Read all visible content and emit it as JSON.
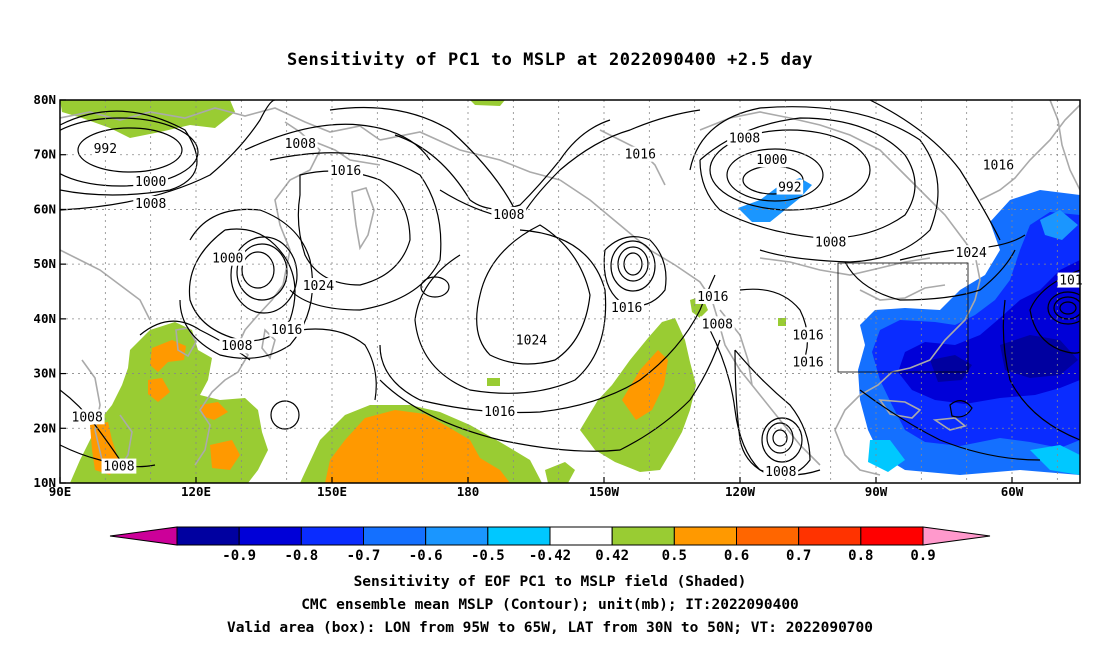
{
  "title": "Sensitivity of PC1 to MSLP at 2022090400 +2.5 day",
  "map": {
    "lat_labels": [
      "80N",
      "70N",
      "60N",
      "50N",
      "40N",
      "30N",
      "20N",
      "10N"
    ],
    "lon_labels": [
      "90E",
      "120E",
      "150E",
      "180",
      "150W",
      "120W",
      "90W",
      "60W"
    ],
    "lon_range_deg": [
      90,
      315
    ],
    "lat_range_deg": [
      10,
      80
    ],
    "grid": true,
    "valid_box": {
      "lon_west": -95,
      "lon_east": -65,
      "lat_south": 30,
      "lat_north": 50
    },
    "contour_labels": [
      {
        "text": "992",
        "lon": 100,
        "lat": 71
      },
      {
        "text": "1000",
        "lon": 110,
        "lat": 65
      },
      {
        "text": "1008",
        "lon": 110,
        "lat": 61
      },
      {
        "text": "1008",
        "lon": 143,
        "lat": 72
      },
      {
        "text": "1016",
        "lon": 153,
        "lat": 67
      },
      {
        "text": "1000",
        "lon": 127,
        "lat": 51
      },
      {
        "text": "1024",
        "lon": 147,
        "lat": 46
      },
      {
        "text": "1016",
        "lon": 140,
        "lat": 38
      },
      {
        "text": "1008",
        "lon": 129,
        "lat": 35
      },
      {
        "text": "1008",
        "lon": 189,
        "lat": 59
      },
      {
        "text": "1016",
        "lon": 218,
        "lat": 70
      },
      {
        "text": "1008",
        "lon": 241,
        "lat": 73
      },
      {
        "text": "1000",
        "lon": 247,
        "lat": 69
      },
      {
        "text": "992",
        "lon": 251,
        "lat": 64
      },
      {
        "text": "1008",
        "lon": 260,
        "lat": 54
      },
      {
        "text": "1016",
        "lon": 297,
        "lat": 68
      },
      {
        "text": "1024",
        "lon": 291,
        "lat": 52
      },
      {
        "text": "101",
        "lon": 313,
        "lat": 47
      },
      {
        "text": "1016",
        "lon": 215,
        "lat": 42
      },
      {
        "text": "1024",
        "lon": 194,
        "lat": 36
      },
      {
        "text": "1016",
        "lon": 234,
        "lat": 44
      },
      {
        "text": "1008",
        "lon": 235,
        "lat": 39
      },
      {
        "text": "1016",
        "lon": 255,
        "lat": 37
      },
      {
        "text": "1016",
        "lon": 255,
        "lat": 32
      },
      {
        "text": "1016",
        "lon": 187,
        "lat": 23
      },
      {
        "text": "1008",
        "lon": 249,
        "lat": 12
      },
      {
        "text": "1008",
        "lon": 96,
        "lat": 22
      },
      {
        "text": "1008",
        "lon": 103,
        "lat": 13
      }
    ]
  },
  "colorbar": {
    "labels": [
      "-0.9",
      "-0.8",
      "-0.7",
      "-0.6",
      "-0.5",
      "-0.42",
      "0.42",
      "0.5",
      "0.6",
      "0.7",
      "0.8",
      "0.9"
    ],
    "colors": [
      "#cc0099",
      "#0000a0",
      "#0000d8",
      "#0a2cff",
      "#1470ff",
      "#1a96ff",
      "#00c8ff",
      "#ffffff",
      "#99cc33",
      "#ff9900",
      "#ff6600",
      "#ff3300",
      "#ff0000",
      "#ff99cc"
    ]
  },
  "captions": {
    "line1": "Sensitivity of EOF PC1 to MSLP field (Shaded)",
    "line2": "CMC ensemble mean MSLP (Contour); unit(mb); IT:2022090400",
    "line3": "Valid area (box): LON from 95W to 65W, LAT from 30N to 50N; VT: 2022090700"
  }
}
